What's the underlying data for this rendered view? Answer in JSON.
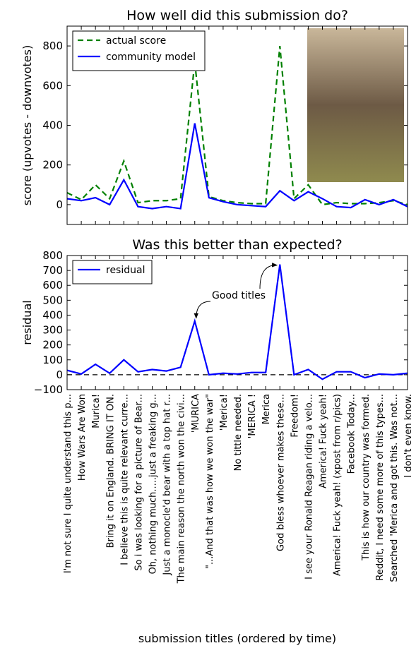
{
  "chart_data": [
    {
      "type": "line",
      "title": "How well did this submission do?",
      "ylabel": "score (upvotes - downvotes)",
      "ylim": [
        -100,
        900
      ],
      "yticks": [
        0,
        200,
        400,
        600,
        800
      ],
      "legend": "upper left",
      "series": [
        {
          "name": "actual score",
          "color": "#008000",
          "dashed": true,
          "values": [
            60,
            25,
            100,
            30,
            220,
            10,
            20,
            20,
            30,
            720,
            40,
            20,
            10,
            5,
            5,
            800,
            30,
            100,
            0,
            10,
            5,
            5,
            10,
            20,
            0
          ]
        },
        {
          "name": "community model",
          "color": "#0000ff",
          "dashed": false,
          "values": [
            30,
            20,
            35,
            0,
            125,
            -10,
            -20,
            -10,
            -20,
            410,
            35,
            15,
            0,
            -5,
            -10,
            70,
            20,
            65,
            30,
            -10,
            -15,
            25,
            0,
            25,
            -10
          ]
        }
      ]
    },
    {
      "type": "line",
      "title": "Was this better than expected?",
      "ylabel": "residual",
      "xlabel": "submission titles (ordered by time)",
      "ylim": [
        -100,
        800
      ],
      "yticks": [
        {
          "value": -100,
          "label": "−100"
        },
        0,
        100,
        200,
        300,
        400,
        500,
        600,
        700,
        800
      ],
      "legend": "upper left",
      "zero_line": true,
      "annotation": "Good titles",
      "categories": [
        "I'm not sure I quite understand this p...",
        "How Wars Are Won",
        "Murica!",
        "Bring it on England. BRING IT ON.",
        "I believe this is quite relevant curre...",
        "So i was looking for a picture of Bear...",
        "Oh, nothing much.....just a freaking g...",
        "Just a monocle'd bear with a top hat r...",
        "The main reason the north won the civi...",
        "'MURICA",
        "\"...And that was how we won the war\"",
        "'Merica!",
        "No tittle needed.",
        "'MERICA !",
        "Merica",
        "God bless whoever makes these...",
        "Freedom!",
        "I see your Ronald Reagan riding a velo...",
        "America! Fuck yeah!",
        "America! Fuck yeah! (xpost from r/pics)",
        "Facebook Today...",
        "This is how our country was formed.",
        "Reddit, I need some more of this types...",
        "Searched 'Merica and got this. Was not...",
        "I don't even know."
      ],
      "series": [
        {
          "name": "residual",
          "color": "#0000ff",
          "dashed": false,
          "values": [
            30,
            5,
            70,
            10,
            100,
            20,
            35,
            25,
            50,
            360,
            0,
            10,
            5,
            15,
            15,
            740,
            0,
            35,
            -30,
            20,
            20,
            -20,
            5,
            0,
            10
          ]
        }
      ]
    }
  ]
}
